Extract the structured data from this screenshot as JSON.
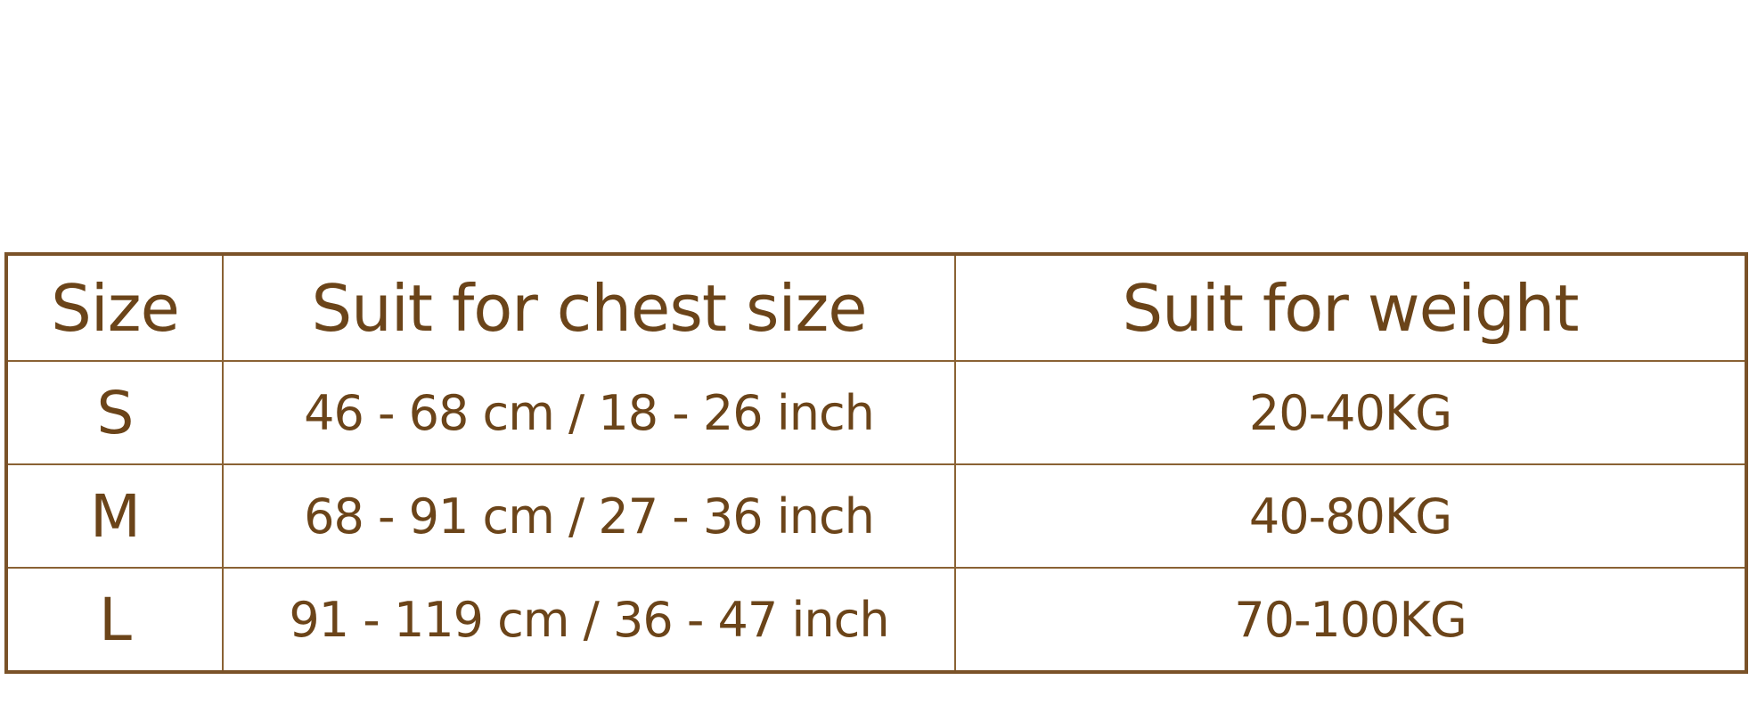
{
  "table": {
    "header": [
      "Size",
      "Suit for chest size",
      "Suit for weight"
    ],
    "rows": [
      [
        "S",
        "46 - 68 cm / 18 - 26 inch",
        "20-40KG"
      ],
      [
        "M",
        "68 - 91 cm / 27 - 36 inch",
        "40-80KG"
      ],
      [
        "L",
        "91 - 119 cm / 36 - 47 inch",
        "70-100KG"
      ]
    ]
  }
}
